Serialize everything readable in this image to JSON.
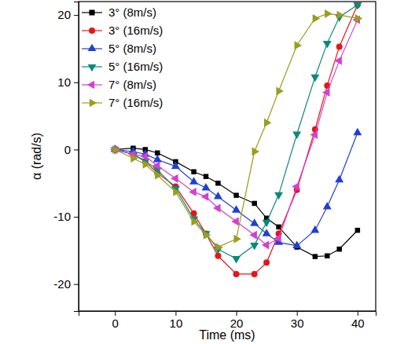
{
  "chart_data": {
    "type": "line",
    "x_label": "Time (ms)",
    "y_label": "α (rad/s)",
    "x": [
      0,
      3,
      5,
      7,
      10,
      13,
      15,
      17,
      20,
      23,
      25,
      27,
      30,
      33,
      35,
      37,
      40
    ],
    "series": [
      {
        "name": "3° (8m/s)",
        "color": "#000000",
        "marker": "square",
        "values": [
          0,
          0.2,
          0,
          -0.5,
          -1.8,
          -3.3,
          -4,
          -5,
          -6.8,
          -8,
          -10.2,
          -11.5,
          -14.5,
          -15.9,
          -15.8,
          -14.8,
          -12
        ]
      },
      {
        "name": "3° (16m/s)",
        "color": "#e8141a",
        "marker": "circle",
        "values": [
          0,
          -0.7,
          -1.8,
          -3.5,
          -5.5,
          -9.5,
          -12.5,
          -15.8,
          -18.5,
          -18.5,
          -16.8,
          -12.5,
          -6,
          3,
          9.5,
          15.3,
          21.5
        ]
      },
      {
        "name": "5° (8m/s)",
        "color": "#1f3fd6",
        "marker": "triangle-up",
        "values": [
          0,
          -0.3,
          -0.7,
          -1.5,
          -2.5,
          -4.8,
          -5.7,
          -7,
          -9,
          -11,
          -12.5,
          -13.8,
          -14.3,
          -12,
          -8.5,
          -4.5,
          2.5
        ]
      },
      {
        "name": "5° (16m/s)",
        "color": "#0a8a7a",
        "marker": "triangle-down",
        "values": [
          0,
          -0.7,
          -1.7,
          -3,
          -5.8,
          -10.3,
          -12.5,
          -14.8,
          -16.2,
          -14.2,
          -10.8,
          -6.7,
          2.3,
          10.8,
          15.8,
          19.7,
          21.5
        ]
      },
      {
        "name": "7° (8m/s)",
        "color": "#d43fcf",
        "marker": "triangle-left",
        "values": [
          0,
          -0.7,
          -1,
          -2.4,
          -4.3,
          -6.3,
          -7,
          -8.7,
          -10.7,
          -12.7,
          -14.2,
          -13.2,
          -5.5,
          2.2,
          8.5,
          13.2,
          19.3
        ]
      },
      {
        "name": "7° (16m/s)",
        "color": "#9c9c1e",
        "marker": "triangle-right",
        "values": [
          0,
          -1.3,
          -2.2,
          -3.8,
          -6.3,
          -10.7,
          -12.7,
          -14.5,
          -13.3,
          -0.3,
          4,
          8.7,
          15.5,
          19.5,
          20.2,
          20,
          19.5
        ]
      }
    ],
    "xlim": [
      -6,
      43
    ],
    "xticks": [
      0,
      10,
      20,
      30,
      40
    ],
    "ylim": [
      -24,
      22
    ],
    "yticks": [
      -20,
      -10,
      0,
      10,
      20
    ],
    "legend": "upper left"
  }
}
